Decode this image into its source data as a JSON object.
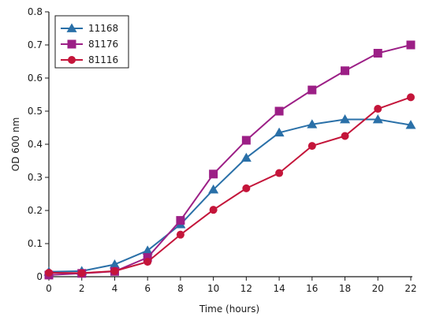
{
  "chart_data": {
    "type": "line",
    "title": "",
    "xlabel": "Time (hours)",
    "ylabel": "OD 600 nm",
    "x": [
      0,
      2,
      4,
      6,
      8,
      10,
      12,
      14,
      16,
      18,
      20,
      22
    ],
    "xticks": [
      "0",
      "2",
      "4",
      "6",
      "8",
      "10",
      "12",
      "14",
      "16",
      "18",
      "20",
      "22"
    ],
    "yticks": [
      "0",
      "0.1",
      "0.2",
      "0.3",
      "0.4",
      "0.5",
      "0.6",
      "0.7",
      "0.8"
    ],
    "xlim": [
      0,
      22
    ],
    "ylim": [
      0,
      0.8
    ],
    "grid": false,
    "legend_position": "top-left",
    "series": [
      {
        "name": "11168",
        "marker": "triangle",
        "color": "#2a70a8",
        "values": [
          0.015,
          0.017,
          0.037,
          0.079,
          0.158,
          0.263,
          0.359,
          0.435,
          0.46,
          0.475,
          0.475,
          0.458
        ]
      },
      {
        "name": "81176",
        "marker": "square",
        "color": "#9c1f86",
        "values": [
          0.005,
          0.01,
          0.016,
          0.058,
          0.17,
          0.31,
          0.412,
          0.5,
          0.564,
          0.622,
          0.675,
          0.7
        ]
      },
      {
        "name": "81116",
        "marker": "circle",
        "color": "#c4153a",
        "values": [
          0.012,
          0.011,
          0.017,
          0.045,
          0.127,
          0.202,
          0.267,
          0.313,
          0.395,
          0.425,
          0.507,
          0.542
        ]
      }
    ]
  }
}
